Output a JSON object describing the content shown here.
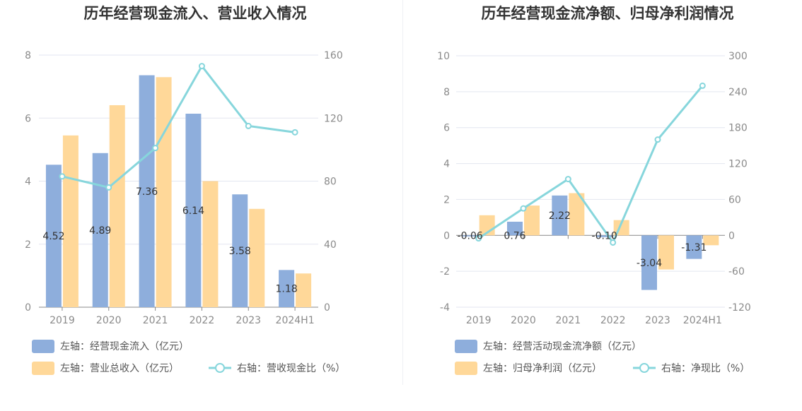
{
  "chart_data": [
    {
      "type": "bar",
      "title": "历年经营现金流入、营业收入情况",
      "categories": [
        "2019",
        "2020",
        "2021",
        "2022",
        "2023",
        "2024H1"
      ],
      "series": [
        {
          "name": "左轴：经营现金流入（亿元）",
          "type": "bar",
          "axis": "left",
          "color": "#8eaedc",
          "values": [
            4.52,
            4.89,
            7.36,
            6.14,
            3.58,
            1.18
          ],
          "labels": [
            "4.52",
            "4.89",
            "7.36",
            "6.14",
            "3.58",
            "1.18"
          ]
        },
        {
          "name": "左轴：营业总收入（亿元）",
          "type": "bar",
          "axis": "left",
          "color": "#ffd899",
          "values": [
            5.45,
            6.41,
            7.3,
            4.0,
            3.12,
            1.07
          ]
        },
        {
          "name": "右轴：营收现金比（%）",
          "type": "line",
          "axis": "right",
          "color": "#87d6dc",
          "values": [
            83,
            76,
            101,
            153,
            115,
            111
          ]
        }
      ],
      "left_axis": {
        "min": 0,
        "max": 8,
        "ticks": [
          "0",
          "2",
          "4",
          "6",
          "8"
        ]
      },
      "right_axis": {
        "min": 0,
        "max": 160,
        "ticks": [
          "0",
          "40",
          "80",
          "120",
          "160"
        ]
      },
      "grid": true,
      "legend": "bottom-left"
    },
    {
      "type": "bar",
      "title": "历年经营现金流净额、归母净利润情况",
      "categories": [
        "2019",
        "2020",
        "2021",
        "2022",
        "2023",
        "2024H1"
      ],
      "series": [
        {
          "name": "左轴：经营活动现金流净额（亿元）",
          "type": "bar",
          "axis": "left",
          "color": "#8eaedc",
          "values": [
            -0.06,
            0.76,
            2.22,
            -0.1,
            -3.04,
            -1.31
          ],
          "labels": [
            "-0.06",
            "0.76",
            "2.22",
            "-0.10",
            "-3.04",
            "-1.31"
          ]
        },
        {
          "name": "左轴：归母净利润（亿元）",
          "type": "bar",
          "axis": "left",
          "color": "#ffd899",
          "values": [
            1.12,
            1.66,
            2.35,
            0.85,
            -1.9,
            -0.55
          ]
        },
        {
          "name": "右轴：净现比（%）",
          "type": "line",
          "axis": "right",
          "color": "#87d6dc",
          "values": [
            -5,
            45,
            94,
            -12,
            160,
            250
          ]
        }
      ],
      "left_axis": {
        "min": -4,
        "max": 10,
        "ticks": [
          "-4",
          "-2",
          "0",
          "2",
          "4",
          "6",
          "8",
          "10"
        ]
      },
      "right_axis": {
        "min": -120,
        "max": 300,
        "ticks": [
          "-120",
          "-60",
          "0",
          "60",
          "120",
          "180",
          "240",
          "300"
        ]
      },
      "grid": true,
      "legend": "bottom-left"
    }
  ]
}
